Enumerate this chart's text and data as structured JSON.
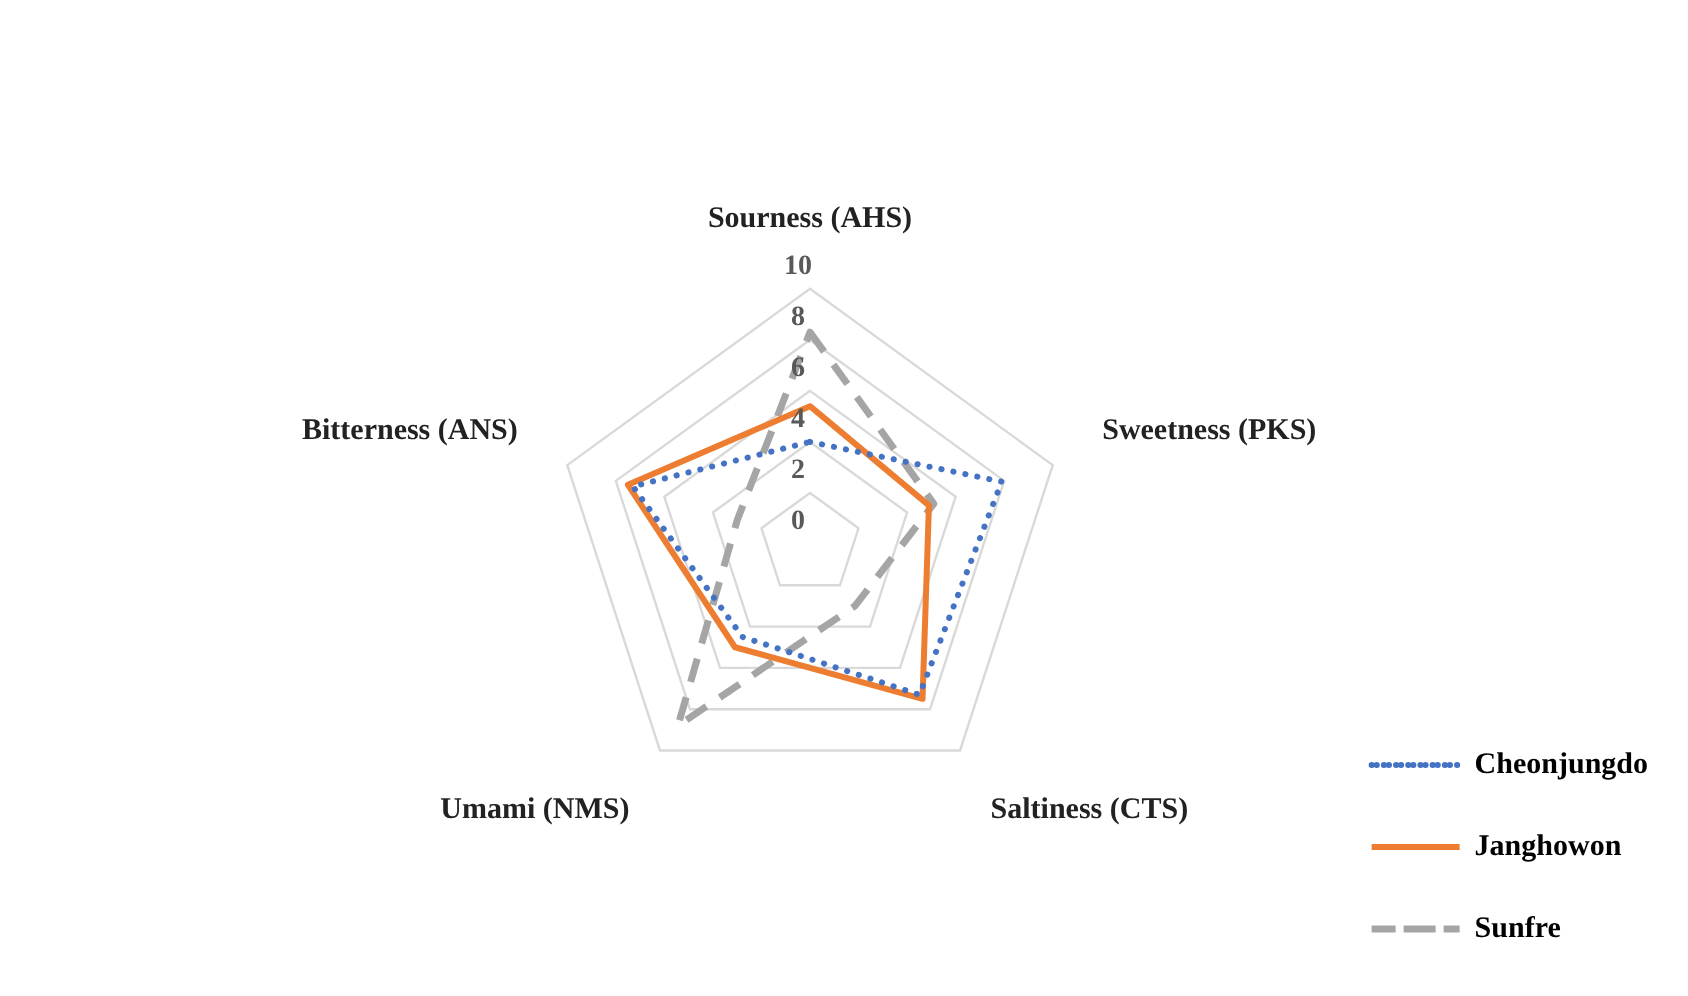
{
  "chart_data": {
    "type": "radar",
    "categories": [
      "Sourness (AHS)",
      "Sweetness (PKS)",
      "Saltiness (CTS)",
      "Umami (NMS)",
      "Bitterness (ANS)"
    ],
    "series": [
      {
        "name": "Cheonjungdo",
        "color": "#4472c4",
        "line_style": "dotted",
        "values": [
          4.0,
          7.9,
          7.3,
          4.5,
          7.3
        ]
      },
      {
        "name": "Janghowon",
        "color": "#ed7d31",
        "line_style": "solid",
        "values": [
          5.4,
          4.9,
          7.5,
          5.0,
          7.5
        ]
      },
      {
        "name": "Sunfre",
        "color": "#a5a5a5",
        "line_style": "dashed",
        "values": [
          8.3,
          5.1,
          3.0,
          8.8,
          3.0
        ]
      }
    ],
    "ylim": [
      0,
      10
    ],
    "yticks": [
      0,
      2,
      4,
      6,
      8,
      10
    ],
    "grid": true,
    "legend": "right",
    "marker": "none"
  }
}
